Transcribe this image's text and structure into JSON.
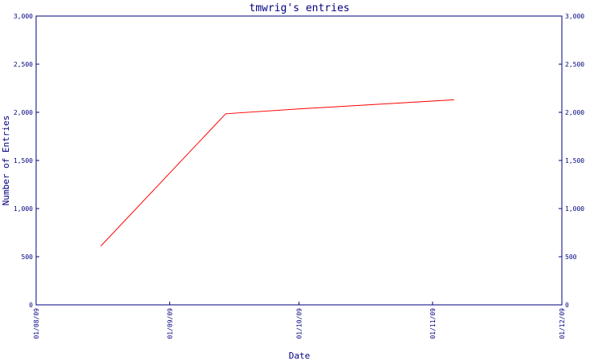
{
  "chart_data": {
    "type": "line",
    "title": "tmwrig's entries",
    "xlabel": "Date",
    "ylabel": "Number of Entries",
    "ylim": [
      0,
      3000
    ],
    "y_ticks": [
      {
        "value": 0,
        "label": "0"
      },
      {
        "value": 500,
        "label": "500"
      },
      {
        "value": 1000,
        "label": "1,000"
      },
      {
        "value": 1500,
        "label": "1,500"
      },
      {
        "value": 2000,
        "label": "2,000"
      },
      {
        "value": 2500,
        "label": "2,500"
      },
      {
        "value": 3000,
        "label": "3,000"
      }
    ],
    "x_range": [
      "2009-08-01",
      "2009-12-01"
    ],
    "x_ticks": [
      {
        "value": "2009-08-01",
        "label": "01/08/09"
      },
      {
        "value": "2009-09-01",
        "label": "01/09/09"
      },
      {
        "value": "2009-10-01",
        "label": "01/10/09"
      },
      {
        "value": "2009-11-01",
        "label": "01/11/09"
      },
      {
        "value": "2009-12-01",
        "label": "01/12/09"
      }
    ],
    "series": [
      {
        "color": "#ff0000",
        "points": [
          {
            "x": "2009-08-16",
            "y": 610
          },
          {
            "x": "2009-09-14",
            "y": 1985
          },
          {
            "x": "2009-10-01",
            "y": 2035
          },
          {
            "x": "2009-11-06",
            "y": 2130
          }
        ]
      }
    ],
    "grid": false,
    "right_axis": true,
    "axis_color": "#000080",
    "text_color": "#000080"
  }
}
